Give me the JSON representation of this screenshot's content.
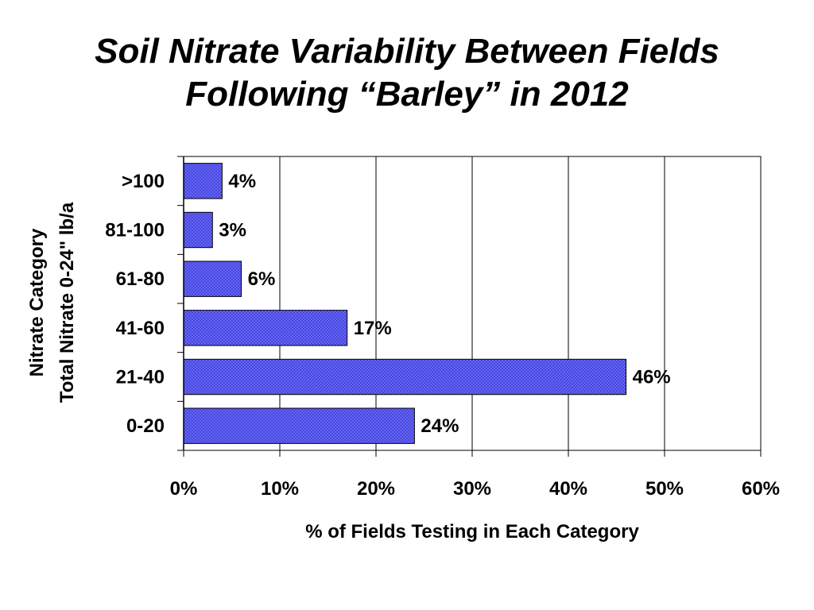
{
  "slide": {
    "title_line1": "Soil Nitrate Variability Between Fields",
    "title_line2": "Following “Barley” in 2012"
  },
  "chart_data": {
    "type": "bar",
    "orientation": "horizontal",
    "title": "Soil Nitrate Variability Between Fields Following “Barley” in 2012",
    "categories": [
      ">100",
      "81-100",
      "61-80",
      "41-60",
      "21-40",
      "0-20"
    ],
    "values": [
      4,
      3,
      6,
      17,
      46,
      24
    ],
    "value_labels": [
      "4%",
      "3%",
      "6%",
      "17%",
      "46%",
      "24%"
    ],
    "xlabel": "% of Fields Testing in Each Category",
    "ylabel_line1": "Nitrate Category",
    "ylabel_line2": "Total Nitrate 0-24\" lb/a",
    "xlim": [
      0,
      60
    ],
    "xticks": [
      0,
      10,
      20,
      30,
      40,
      50,
      60
    ],
    "xtick_labels": [
      "0%",
      "10%",
      "20%",
      "30%",
      "40%",
      "50%",
      "60%"
    ],
    "grid": "vertical",
    "bar_color": "#5b5bf0",
    "bar_pattern": "crosshatch",
    "legend": "none"
  }
}
